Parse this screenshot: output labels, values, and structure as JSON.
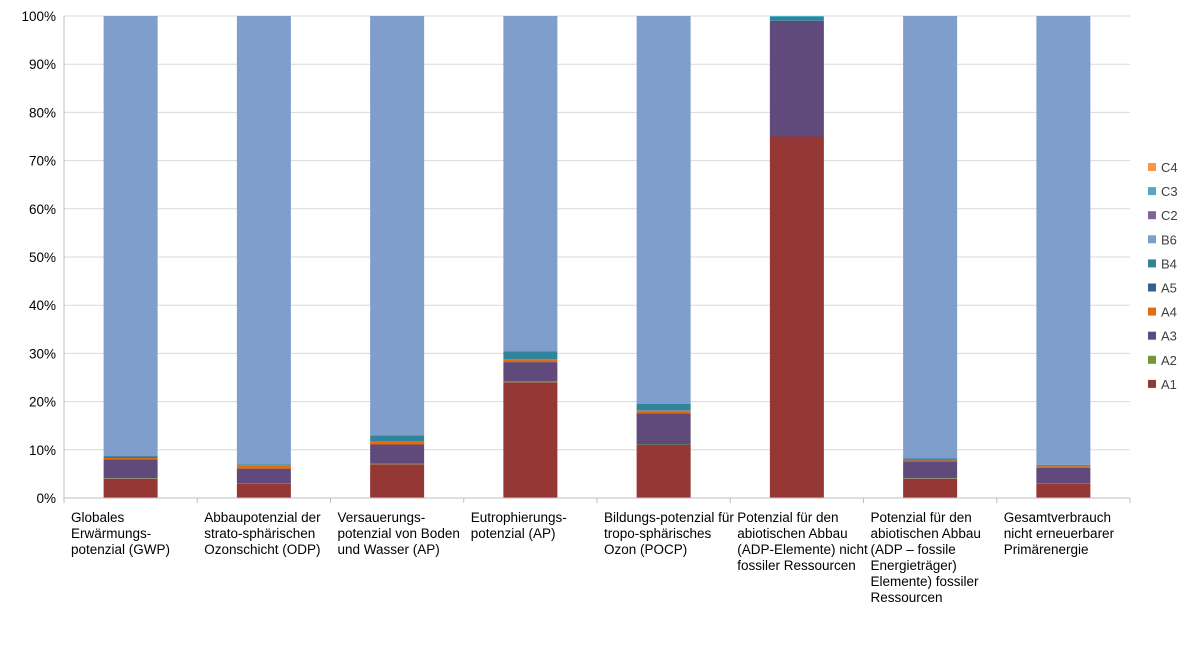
{
  "chart_data": {
    "type": "bar",
    "stacked": "percent",
    "ylim": [
      0,
      100
    ],
    "yticks": [
      "0%",
      "10%",
      "20%",
      "30%",
      "40%",
      "50%",
      "60%",
      "70%",
      "80%",
      "90%",
      "100%"
    ],
    "grid": true,
    "legend_position": "right",
    "categories": [
      "Globales Erwärmungs-potenzial (GWP)",
      "Abbaupotenzial der strato-sphärischen Ozonschicht (ODP)",
      "Versauerungs-potenzial von Boden und Wasser (AP)",
      "Eutrophierungs-potenzial (AP)",
      "Bildungs-potenzial für tropo-sphärisches Ozon (POCP)",
      "Potenzial für den abiotischen Abbau (ADP-Elemente) nicht fossiler Ressourcen",
      "Potenzial für den abiotischen Abbau (ADP – fossile Energieträger) Elemente) fossiler Ressourcen",
      "Gesamtverbrauch nicht erneuerbarer Primärenergie"
    ],
    "series": [
      {
        "name": "A1",
        "color": "#953735",
        "values": [
          4,
          3,
          7,
          24,
          11,
          75,
          4,
          3
        ]
      },
      {
        "name": "A2",
        "color": "#77933c",
        "values": [
          0.1,
          0.1,
          0.1,
          0.2,
          0.1,
          0,
          0.1,
          0.1
        ]
      },
      {
        "name": "A3",
        "color": "#604a7b",
        "values": [
          3.9,
          3,
          4,
          4,
          6.5,
          24,
          3.5,
          3.2
        ]
      },
      {
        "name": "A4",
        "color": "#e46c0a",
        "values": [
          0.3,
          0.6,
          0.6,
          0.5,
          0.5,
          0,
          0.2,
          0.3
        ]
      },
      {
        "name": "A5",
        "color": "#376092",
        "values": [
          0.1,
          0.1,
          0.1,
          0.1,
          0.1,
          0,
          0.1,
          0.1
        ]
      },
      {
        "name": "B4",
        "color": "#31849b",
        "values": [
          0.3,
          0.2,
          1.2,
          1.6,
          1.3,
          0.8,
          0.3,
          0.2
        ]
      },
      {
        "name": "B6",
        "color": "#7f9ecb",
        "values": [
          91.3,
          93,
          87,
          69.6,
          80.5,
          0,
          91.8,
          93.1
        ]
      },
      {
        "name": "C2",
        "color": "#8064a2",
        "values": [
          0,
          0,
          0,
          0,
          0,
          0,
          0,
          0
        ]
      },
      {
        "name": "C3",
        "color": "#4bacc6",
        "values": [
          0,
          0,
          0,
          0,
          0,
          0.2,
          0,
          0
        ]
      },
      {
        "name": "C4",
        "color": "#f79646",
        "values": [
          0,
          0,
          0,
          0,
          0,
          0,
          0,
          0
        ]
      }
    ]
  }
}
